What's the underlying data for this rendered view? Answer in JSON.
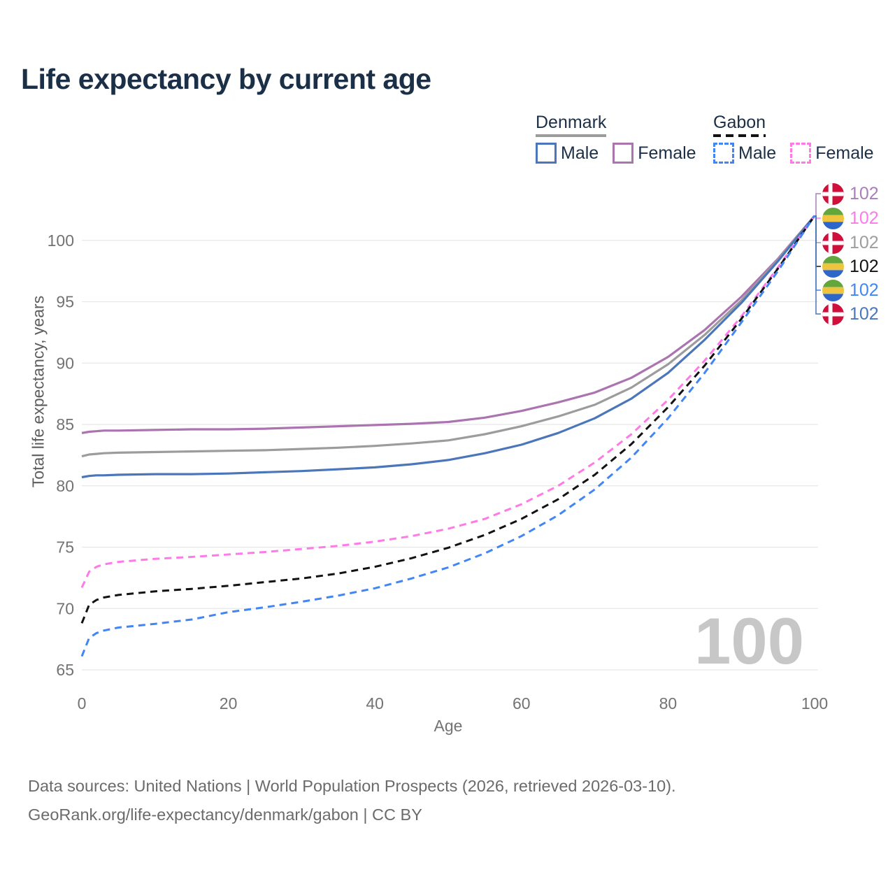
{
  "title": "Life expectancy by current age",
  "watermark": "100",
  "legend": {
    "groups": [
      {
        "label": "Denmark",
        "underline_style": "solid",
        "underline_color": "#9c9c9c",
        "items": [
          {
            "label": "Male",
            "color": "#4b76ba",
            "dashed": false
          },
          {
            "label": "Female",
            "color": "#ab74b0",
            "dashed": false
          }
        ]
      },
      {
        "label": "Gabon",
        "underline_style": "dashed",
        "underline_color": "#121212",
        "items": [
          {
            "label": "Male",
            "color": "#4285f4",
            "dashed": true
          },
          {
            "label": "Female",
            "color": "#ff7ae8",
            "dashed": true
          }
        ]
      }
    ]
  },
  "chart_data": {
    "type": "line",
    "title": "Life expectancy by current age",
    "xlabel": "Age",
    "ylabel": "Total life expectancy, years",
    "xlim": [
      0,
      100
    ],
    "ylim": [
      65,
      103
    ],
    "x_ticks": [
      0,
      20,
      40,
      60,
      80,
      100
    ],
    "y_ticks": [
      65,
      70,
      75,
      80,
      85,
      90,
      95,
      100
    ],
    "grid": "horizontal",
    "legend_position": "top-right",
    "x": [
      0,
      1,
      2,
      3,
      5,
      10,
      15,
      20,
      25,
      30,
      35,
      40,
      45,
      50,
      55,
      60,
      65,
      70,
      75,
      80,
      85,
      90,
      95,
      100
    ],
    "series": [
      {
        "name": "Denmark Female",
        "color": "#ab74b0",
        "dash": false,
        "values": [
          84.3,
          84.4,
          84.45,
          84.5,
          84.5,
          84.55,
          84.6,
          84.6,
          84.65,
          84.75,
          84.85,
          84.95,
          85.05,
          85.2,
          85.55,
          86.1,
          86.8,
          87.6,
          88.8,
          90.5,
          92.7,
          95.4,
          98.5,
          102
        ]
      },
      {
        "name": "Denmark",
        "color": "#9c9c9c",
        "dash": false,
        "values": [
          82.4,
          82.55,
          82.6,
          82.65,
          82.7,
          82.75,
          82.8,
          82.85,
          82.9,
          83.0,
          83.1,
          83.25,
          83.45,
          83.7,
          84.2,
          84.85,
          85.65,
          86.6,
          88.0,
          89.9,
          92.3,
          95.1,
          98.4,
          102
        ]
      },
      {
        "name": "Denmark Male",
        "color": "#4b76ba",
        "dash": false,
        "values": [
          80.7,
          80.8,
          80.85,
          80.85,
          80.9,
          80.95,
          80.95,
          81.0,
          81.1,
          81.2,
          81.35,
          81.5,
          81.75,
          82.1,
          82.65,
          83.35,
          84.3,
          85.5,
          87.1,
          89.2,
          91.9,
          94.9,
          98.3,
          102
        ]
      },
      {
        "name": "Gabon Female",
        "color": "#ff7ae8",
        "dash": true,
        "values": [
          71.7,
          73.0,
          73.4,
          73.6,
          73.8,
          74.05,
          74.2,
          74.4,
          74.6,
          74.85,
          75.1,
          75.45,
          75.9,
          76.5,
          77.3,
          78.5,
          80.0,
          81.9,
          84.2,
          87.0,
          90.2,
          93.8,
          97.8,
          102
        ]
      },
      {
        "name": "Gabon",
        "color": "#121212",
        "dash": true,
        "values": [
          68.8,
          70.3,
          70.7,
          70.9,
          71.1,
          71.4,
          71.6,
          71.85,
          72.15,
          72.45,
          72.85,
          73.4,
          74.1,
          74.95,
          76.0,
          77.3,
          78.9,
          80.9,
          83.4,
          86.4,
          89.8,
          93.6,
          97.7,
          102
        ]
      },
      {
        "name": "Gabon Male",
        "color": "#4285f4",
        "dash": true,
        "values": [
          66.1,
          67.6,
          68.0,
          68.2,
          68.45,
          68.75,
          69.1,
          69.7,
          70.1,
          70.55,
          71.05,
          71.65,
          72.45,
          73.35,
          74.5,
          75.9,
          77.6,
          79.7,
          82.3,
          85.5,
          89.2,
          93.3,
          97.5,
          102
        ]
      }
    ],
    "end_labels": [
      {
        "flag": "denmark",
        "series": "Denmark Female",
        "value": "102",
        "color": "#a87fb8"
      },
      {
        "flag": "gabon",
        "series": "Gabon Female",
        "value": "102",
        "color": "#ff7ae8"
      },
      {
        "flag": "denmark",
        "series": "Denmark",
        "value": "102",
        "color": "#9e9e9e"
      },
      {
        "flag": "gabon",
        "series": "Gabon",
        "value": "102",
        "color": "#121212"
      },
      {
        "flag": "gabon",
        "series": "Gabon Male",
        "value": "102",
        "color": "#4285f4"
      },
      {
        "flag": "denmark",
        "series": "Denmark Male",
        "value": "102",
        "color": "#4b76ba"
      }
    ]
  },
  "footer": {
    "line1": "Data sources: United Nations | World Population Prospects (2026, retrieved 2026-03-10).",
    "line2": "GeoRank.org/life-expectancy/denmark/gabon | CC BY"
  }
}
